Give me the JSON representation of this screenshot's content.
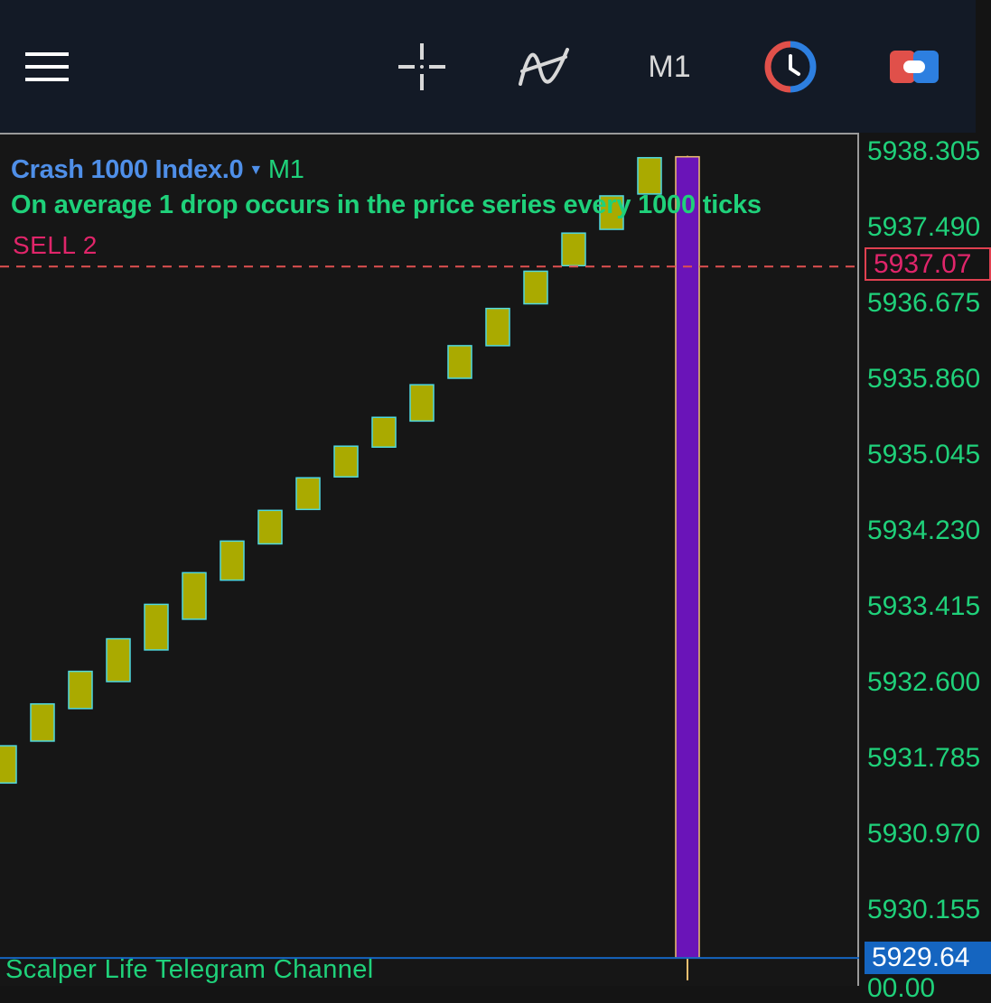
{
  "toolbar": {
    "menu_icon": "hamburger-menu-icon",
    "crosshair_icon": "crosshair-icon",
    "indicators_icon": "indicators-icon",
    "timeframe_label": "M1",
    "clock_icon": "clock-icon",
    "trade_icon": "trade-icon"
  },
  "chart": {
    "symbol": "Crash 1000 Index.0",
    "timeframe": "M1",
    "description": "On average 1 drop occurs in the price series every 1000 ticks",
    "order_label": "SELL 2",
    "footer_label": "Scalper Life Telegram Channel",
    "price_ticks": [
      "5938.305",
      "5937.490",
      "5936.675",
      "5935.860",
      "5935.045",
      "5934.230",
      "5933.415",
      "5932.600",
      "5931.785",
      "5930.970",
      "5930.155"
    ],
    "sell_price": "5937.07",
    "bid_price": "5929.64",
    "bottom_partial": "00.00"
  },
  "colors": {
    "toolbar_bg": "#131a26",
    "chart_bg": "#161616",
    "bull_candle_fill": "#aaaa00",
    "bull_candle_border": "#4fd8e0",
    "bear_candle_fill": "#6a14b8",
    "bear_candle_border": "#f0c070",
    "axis_text": "#1fd17a",
    "symbol_text": "#4f8fe8",
    "sell_line": "#e05050",
    "sell_text": "#e0256a",
    "bid_line": "#1565c0"
  },
  "chart_data": {
    "type": "candlestick",
    "title": "Crash 1000 Index.0",
    "ylim": [
      5929.4,
      5938.5
    ],
    "candles": [
      {
        "open": 5931.52,
        "close": 5931.92,
        "high": 5931.92,
        "low": 5931.52,
        "dir": "up"
      },
      {
        "open": 5931.97,
        "close": 5932.37,
        "high": 5932.37,
        "low": 5931.97,
        "dir": "up"
      },
      {
        "open": 5932.32,
        "close": 5932.72,
        "high": 5932.72,
        "low": 5932.32,
        "dir": "up"
      },
      {
        "open": 5932.61,
        "close": 5933.07,
        "high": 5933.07,
        "low": 5932.61,
        "dir": "up"
      },
      {
        "open": 5932.95,
        "close": 5933.44,
        "high": 5933.44,
        "low": 5932.95,
        "dir": "up"
      },
      {
        "open": 5933.28,
        "close": 5933.78,
        "high": 5933.78,
        "low": 5933.28,
        "dir": "up"
      },
      {
        "open": 5933.7,
        "close": 5934.12,
        "high": 5934.12,
        "low": 5933.7,
        "dir": "up"
      },
      {
        "open": 5934.09,
        "close": 5934.45,
        "high": 5934.45,
        "low": 5934.09,
        "dir": "up"
      },
      {
        "open": 5934.46,
        "close": 5934.8,
        "high": 5934.8,
        "low": 5934.46,
        "dir": "up"
      },
      {
        "open": 5934.81,
        "close": 5935.14,
        "high": 5935.14,
        "low": 5934.81,
        "dir": "up"
      },
      {
        "open": 5935.13,
        "close": 5935.45,
        "high": 5935.45,
        "low": 5935.13,
        "dir": "up"
      },
      {
        "open": 5935.41,
        "close": 5935.8,
        "high": 5935.8,
        "low": 5935.41,
        "dir": "up"
      },
      {
        "open": 5935.87,
        "close": 5936.22,
        "high": 5936.22,
        "low": 5935.87,
        "dir": "up"
      },
      {
        "open": 5936.22,
        "close": 5936.62,
        "high": 5936.62,
        "low": 5936.22,
        "dir": "up"
      },
      {
        "open": 5936.67,
        "close": 5937.02,
        "high": 5937.02,
        "low": 5936.67,
        "dir": "up"
      },
      {
        "open": 5937.08,
        "close": 5937.43,
        "high": 5937.43,
        "low": 5937.08,
        "dir": "up"
      },
      {
        "open": 5937.47,
        "close": 5937.83,
        "high": 5937.83,
        "low": 5937.47,
        "dir": "up"
      },
      {
        "open": 5937.85,
        "close": 5938.24,
        "high": 5938.24,
        "low": 5937.85,
        "dir": "up"
      },
      {
        "open": 5938.25,
        "close": 5929.64,
        "high": 5938.26,
        "low": 5929.4,
        "dir": "down"
      }
    ],
    "sell_level": 5937.07,
    "bid_level": 5929.64
  }
}
